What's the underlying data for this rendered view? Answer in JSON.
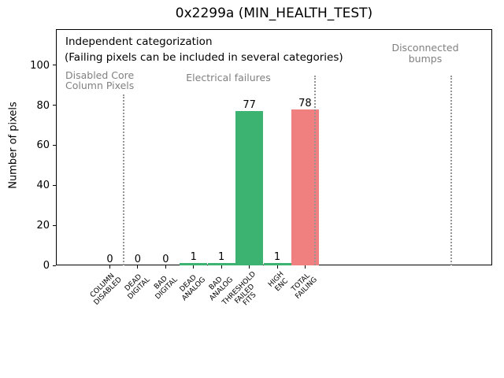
{
  "chart_data": {
    "type": "bar",
    "title": "0x2299a (MIN_HEALTH_TEST)",
    "xlabel": "",
    "ylabel": "Number of pixels",
    "categories": [
      "COLUMN\nDISABLED",
      "DEAD\nDIGITAL",
      "BAD\nDIGITAL",
      "DEAD\nANALOG",
      "BAD\nANALOG",
      "THRESHOLD\nFAILED\nFITS",
      "HIGH\nENC",
      "TOTAL\nFAILING"
    ],
    "values": [
      0,
      0,
      0,
      1,
      1,
      77,
      1,
      78
    ],
    "bar_value_labels": [
      "0",
      "0",
      "0",
      "1",
      "1",
      "77",
      "1",
      "78"
    ],
    "bar_colors": [
      "#3cb371",
      "#3cb371",
      "#3cb371",
      "#3cb371",
      "#3cb371",
      "#3cb371",
      "#3cb371",
      "#f08080"
    ],
    "yticks": [
      0,
      20,
      40,
      60,
      80,
      100
    ],
    "ylim": [
      0,
      118
    ],
    "grid": false,
    "legend": "none",
    "annotations": [
      {
        "name": "independent-categorization",
        "text": "Independent categorization",
        "color": "#000000"
      },
      {
        "name": "failing-pixels-note",
        "text": "(Failing pixels can be included in several categories)",
        "color": "#000000"
      },
      {
        "name": "section-disabled-core",
        "text": "Disabled Core\nColumn Pixels",
        "color": "#808080"
      },
      {
        "name": "section-electrical",
        "text": "Electrical failures",
        "color": "#808080"
      },
      {
        "name": "section-disconnected",
        "text": "Disconnected\nbumps",
        "color": "#808080"
      }
    ],
    "separators": {
      "style": "dotted",
      "color": "#949494",
      "count": 3
    }
  },
  "colors": {
    "bar_green": "#3cb371",
    "bar_red": "#f08080",
    "gray_text": "#808080",
    "axis": "#000000"
  }
}
